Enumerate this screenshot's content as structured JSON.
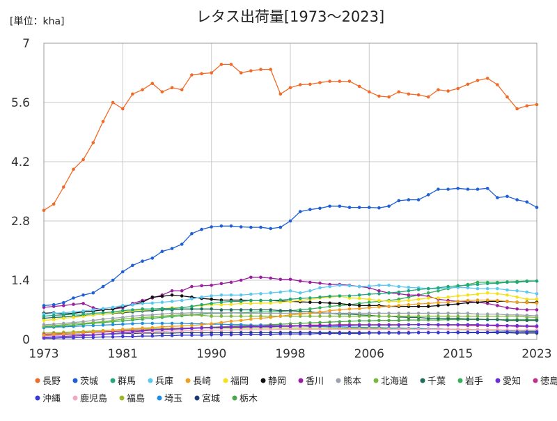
{
  "chart_data": {
    "type": "line",
    "title": "レタス出荷量[1973〜2023]",
    "unit_label": "[単位：kha]",
    "xlim": [
      1973,
      2023
    ],
    "ylim": [
      0,
      7
    ],
    "x_ticks": [
      1973,
      1981,
      1990,
      1998,
      2006,
      2015,
      2023
    ],
    "y_ticks": [
      0,
      1.4,
      2.8,
      4.2,
      5.6,
      7
    ],
    "y_tick_labels": [
      "0",
      "1.4",
      "2.8",
      "4.2",
      "5.6",
      "7"
    ],
    "grid": true,
    "legend_position": "bottom",
    "x": [
      1973,
      1974,
      1975,
      1976,
      1977,
      1978,
      1979,
      1980,
      1981,
      1982,
      1983,
      1984,
      1985,
      1986,
      1987,
      1988,
      1989,
      1990,
      1991,
      1992,
      1993,
      1994,
      1995,
      1996,
      1997,
      1998,
      1999,
      2000,
      2001,
      2002,
      2003,
      2004,
      2005,
      2006,
      2007,
      2008,
      2009,
      2010,
      2011,
      2012,
      2013,
      2014,
      2015,
      2016,
      2017,
      2018,
      2019,
      2020,
      2021,
      2022,
      2023
    ],
    "series": [
      {
        "name": "長野",
        "color": "#f06a28",
        "values": [
          3.05,
          3.2,
          3.6,
          4.02,
          4.25,
          4.65,
          5.15,
          5.6,
          5.45,
          5.8,
          5.9,
          6.05,
          5.85,
          5.95,
          5.9,
          6.25,
          6.28,
          6.3,
          6.5,
          6.5,
          6.3,
          6.35,
          6.38,
          6.38,
          5.8,
          5.95,
          6.02,
          6.03,
          6.07,
          6.1,
          6.1,
          6.1,
          5.98,
          5.85,
          5.75,
          5.73,
          5.85,
          5.8,
          5.78,
          5.73,
          5.9,
          5.87,
          5.93,
          6.03,
          6.12,
          6.17,
          6.02,
          5.73,
          5.45,
          5.52,
          5.55
        ]
      },
      {
        "name": "茨城",
        "color": "#1f5fd6",
        "values": [
          0.8,
          0.82,
          0.87,
          0.98,
          1.05,
          1.1,
          1.25,
          1.4,
          1.6,
          1.75,
          1.85,
          1.92,
          2.08,
          2.15,
          2.25,
          2.5,
          2.6,
          2.66,
          2.68,
          2.68,
          2.66,
          2.65,
          2.65,
          2.62,
          2.65,
          2.8,
          3.02,
          3.07,
          3.1,
          3.15,
          3.15,
          3.12,
          3.12,
          3.12,
          3.11,
          3.15,
          3.28,
          3.3,
          3.3,
          3.42,
          3.55,
          3.55,
          3.57,
          3.55,
          3.55,
          3.57,
          3.35,
          3.38,
          3.3,
          3.25,
          3.12
        ]
      },
      {
        "name": "群馬",
        "color": "#21a87a",
        "values": [
          0.55,
          0.57,
          0.58,
          0.6,
          0.6,
          0.62,
          0.63,
          0.65,
          0.68,
          0.7,
          0.72,
          0.72,
          0.73,
          0.73,
          0.75,
          0.78,
          0.82,
          0.85,
          0.88,
          0.9,
          0.9,
          0.92,
          0.92,
          0.92,
          0.93,
          0.95,
          0.97,
          0.98,
          1.0,
          1.02,
          1.03,
          1.03,
          1.05,
          1.07,
          1.08,
          1.1,
          1.12,
          1.15,
          1.18,
          1.2,
          1.22,
          1.25,
          1.27,
          1.28,
          1.3,
          1.32,
          1.33,
          1.35,
          1.35,
          1.37,
          1.38
        ]
      },
      {
        "name": "兵庫",
        "color": "#5ac8f0",
        "values": [
          0.6,
          0.62,
          0.63,
          0.65,
          0.67,
          0.7,
          0.73,
          0.76,
          0.8,
          0.82,
          0.85,
          0.86,
          0.88,
          0.9,
          0.92,
          0.96,
          1.0,
          1.03,
          1.05,
          1.05,
          1.05,
          1.07,
          1.08,
          1.1,
          1.12,
          1.15,
          1.1,
          1.15,
          1.22,
          1.25,
          1.28,
          1.27,
          1.25,
          1.26,
          1.28,
          1.28,
          1.25,
          1.23,
          1.22,
          1.2,
          1.2,
          1.22,
          1.23,
          1.22,
          1.2,
          1.2,
          1.2,
          1.17,
          1.15,
          1.12,
          1.08
        ]
      },
      {
        "name": "長崎",
        "color": "#f0a020",
        "values": [
          0.1,
          0.12,
          0.13,
          0.15,
          0.17,
          0.18,
          0.2,
          0.22,
          0.24,
          0.25,
          0.27,
          0.28,
          0.3,
          0.31,
          0.32,
          0.33,
          0.35,
          0.37,
          0.4,
          0.43,
          0.45,
          0.48,
          0.5,
          0.52,
          0.55,
          0.58,
          0.6,
          0.62,
          0.65,
          0.68,
          0.7,
          0.72,
          0.73,
          0.75,
          0.77,
          0.78,
          0.8,
          0.82,
          0.84,
          0.85,
          0.87,
          0.88,
          0.9,
          0.92,
          0.93,
          0.93,
          0.92,
          0.9,
          0.88,
          0.87,
          0.86
        ]
      },
      {
        "name": "福岡",
        "color": "#f5e21a",
        "values": [
          0.45,
          0.47,
          0.5,
          0.52,
          0.55,
          0.58,
          0.6,
          0.63,
          0.65,
          0.68,
          0.7,
          0.72,
          0.73,
          0.75,
          0.75,
          0.78,
          0.8,
          0.82,
          0.82,
          0.83,
          0.85,
          0.85,
          0.86,
          0.86,
          0.88,
          0.9,
          0.92,
          0.95,
          0.98,
          1.0,
          1.02,
          0.98,
          0.97,
          0.95,
          0.92,
          0.9,
          0.9,
          0.92,
          0.95,
          0.98,
          0.98,
          1.0,
          1.03,
          1.05,
          1.07,
          1.1,
          1.08,
          1.05,
          1.0,
          0.95,
          0.95
        ]
      },
      {
        "name": "静岡",
        "color": "#111111",
        "values": [
          0.62,
          0.63,
          0.6,
          0.62,
          0.65,
          0.67,
          0.7,
          0.72,
          0.78,
          0.82,
          0.88,
          1.0,
          1.02,
          1.05,
          1.03,
          1.0,
          0.97,
          0.95,
          0.93,
          0.93,
          0.93,
          0.92,
          0.92,
          0.92,
          0.91,
          0.9,
          0.89,
          0.88,
          0.87,
          0.86,
          0.85,
          0.82,
          0.8,
          0.8,
          0.8,
          0.78,
          0.78,
          0.78,
          0.78,
          0.78,
          0.8,
          0.82,
          0.84,
          0.87,
          0.88,
          0.9,
          0.9,
          0.9,
          0.88,
          0.88,
          0.88
        ]
      },
      {
        "name": "香川",
        "color": "#9c1fa0",
        "values": [
          0.76,
          0.78,
          0.8,
          0.83,
          0.85,
          0.75,
          0.7,
          0.72,
          0.75,
          0.85,
          0.92,
          0.98,
          1.05,
          1.15,
          1.15,
          1.25,
          1.27,
          1.28,
          1.32,
          1.35,
          1.4,
          1.47,
          1.47,
          1.45,
          1.42,
          1.42,
          1.38,
          1.35,
          1.33,
          1.3,
          1.3,
          1.28,
          1.25,
          1.22,
          1.15,
          1.1,
          1.08,
          1.05,
          1.05,
          1.02,
          0.95,
          0.92,
          0.9,
          0.9,
          0.88,
          0.85,
          0.8,
          0.75,
          0.72,
          0.7,
          0.7
        ]
      },
      {
        "name": "熊本",
        "color": "#9aa3ad",
        "values": [
          0.35,
          0.36,
          0.38,
          0.4,
          0.42,
          0.45,
          0.48,
          0.5,
          0.52,
          0.55,
          0.57,
          0.58,
          0.6,
          0.62,
          0.62,
          0.63,
          0.63,
          0.63,
          0.63,
          0.63,
          0.62,
          0.62,
          0.62,
          0.62,
          0.62,
          0.62,
          0.62,
          0.62,
          0.62,
          0.62,
          0.62,
          0.62,
          0.62,
          0.62,
          0.62,
          0.62,
          0.62,
          0.62,
          0.62,
          0.62,
          0.62,
          0.62,
          0.62,
          0.62,
          0.6,
          0.6,
          0.6,
          0.58,
          0.58,
          0.57,
          0.56
        ]
      },
      {
        "name": "北海道",
        "color": "#7ab83a",
        "values": [
          0.32,
          0.33,
          0.35,
          0.37,
          0.38,
          0.4,
          0.42,
          0.45,
          0.48,
          0.5,
          0.52,
          0.53,
          0.55,
          0.57,
          0.58,
          0.58,
          0.57,
          0.55,
          0.55,
          0.55,
          0.55,
          0.55,
          0.55,
          0.55,
          0.55,
          0.55,
          0.55,
          0.55,
          0.55,
          0.55,
          0.55,
          0.55,
          0.55,
          0.55,
          0.55,
          0.55,
          0.55,
          0.55,
          0.55,
          0.55,
          0.55,
          0.55,
          0.55,
          0.55,
          0.55,
          0.55,
          0.55,
          0.55,
          0.55,
          0.53,
          0.52
        ]
      },
      {
        "name": "千葉",
        "color": "#1d6b5c",
        "values": [
          0.5,
          0.52,
          0.53,
          0.55,
          0.57,
          0.58,
          0.6,
          0.62,
          0.63,
          0.65,
          0.67,
          0.68,
          0.7,
          0.7,
          0.72,
          0.72,
          0.72,
          0.72,
          0.7,
          0.7,
          0.7,
          0.7,
          0.7,
          0.7,
          0.68,
          0.68,
          0.66,
          0.65,
          0.63,
          0.62,
          0.6,
          0.6,
          0.58,
          0.57,
          0.55,
          0.55,
          0.53,
          0.52,
          0.52,
          0.5,
          0.5,
          0.5,
          0.5,
          0.48,
          0.48,
          0.47,
          0.47,
          0.45,
          0.45,
          0.45,
          0.45
        ]
      },
      {
        "name": "岩手",
        "color": "#36b05a",
        "values": [
          0.3,
          0.31,
          0.32,
          0.34,
          0.36,
          0.38,
          0.4,
          0.42,
          0.44,
          0.46,
          0.48,
          0.5,
          0.52,
          0.54,
          0.56,
          0.58,
          0.6,
          0.62,
          0.62,
          0.63,
          0.63,
          0.64,
          0.65,
          0.65,
          0.66,
          0.68,
          0.7,
          0.72,
          0.75,
          0.78,
          0.8,
          0.82,
          0.85,
          0.88,
          0.9,
          0.92,
          0.95,
          1.0,
          1.05,
          1.1,
          1.15,
          1.2,
          1.25,
          1.3,
          1.35,
          1.35,
          1.35,
          1.36,
          1.37,
          1.38,
          1.38
        ]
      },
      {
        "name": "愛知",
        "color": "#6b2fd6",
        "values": [
          0.05,
          0.06,
          0.07,
          0.08,
          0.09,
          0.1,
          0.12,
          0.14,
          0.16,
          0.18,
          0.2,
          0.22,
          0.23,
          0.24,
          0.25,
          0.26,
          0.27,
          0.28,
          0.28,
          0.29,
          0.29,
          0.3,
          0.3,
          0.3,
          0.31,
          0.31,
          0.32,
          0.32,
          0.32,
          0.33,
          0.33,
          0.33,
          0.34,
          0.34,
          0.34,
          0.34,
          0.34,
          0.35,
          0.35,
          0.35,
          0.35,
          0.35,
          0.35,
          0.35,
          0.35,
          0.34,
          0.34,
          0.33,
          0.33,
          0.32,
          0.32
        ]
      },
      {
        "name": "徳島",
        "color": "#c22f8a",
        "values": [
          0.12,
          0.13,
          0.14,
          0.15,
          0.16,
          0.17,
          0.18,
          0.19,
          0.2,
          0.21,
          0.22,
          0.23,
          0.24,
          0.25,
          0.26,
          0.27,
          0.28,
          0.28,
          0.29,
          0.3,
          0.3,
          0.31,
          0.31,
          0.32,
          0.32,
          0.33,
          0.33,
          0.34,
          0.34,
          0.34,
          0.35,
          0.35,
          0.35,
          0.35,
          0.35,
          0.35,
          0.35,
          0.35,
          0.35,
          0.35,
          0.34,
          0.34,
          0.34,
          0.33,
          0.33,
          0.33,
          0.32,
          0.32,
          0.31,
          0.31,
          0.3
        ]
      },
      {
        "name": "沖縄",
        "color": "#3a3ad6",
        "values": [
          0.03,
          0.03,
          0.04,
          0.04,
          0.05,
          0.05,
          0.06,
          0.06,
          0.07,
          0.07,
          0.08,
          0.08,
          0.09,
          0.09,
          0.1,
          0.1,
          0.1,
          0.11,
          0.11,
          0.11,
          0.12,
          0.12,
          0.12,
          0.12,
          0.13,
          0.13,
          0.13,
          0.13,
          0.14,
          0.14,
          0.14,
          0.14,
          0.14,
          0.15,
          0.15,
          0.15,
          0.15,
          0.15,
          0.16,
          0.16,
          0.16,
          0.16,
          0.17,
          0.17,
          0.17,
          0.17,
          0.18,
          0.18,
          0.18,
          0.18,
          0.18
        ]
      },
      {
        "name": "鹿児島",
        "color": "#f2a8c0",
        "values": [
          0.08,
          0.09,
          0.1,
          0.1,
          0.11,
          0.12,
          0.13,
          0.14,
          0.15,
          0.16,
          0.17,
          0.18,
          0.19,
          0.2,
          0.2,
          0.21,
          0.21,
          0.22,
          0.22,
          0.22,
          0.23,
          0.23,
          0.23,
          0.23,
          0.24,
          0.24,
          0.24,
          0.24,
          0.24,
          0.24,
          0.24,
          0.24,
          0.24,
          0.24,
          0.24,
          0.24,
          0.24,
          0.24,
          0.24,
          0.24,
          0.24,
          0.24,
          0.24,
          0.24,
          0.23,
          0.23,
          0.23,
          0.22,
          0.22,
          0.22,
          0.22
        ]
      },
      {
        "name": "福島",
        "color": "#9ab82a",
        "values": [
          0.15,
          0.16,
          0.17,
          0.18,
          0.19,
          0.2,
          0.21,
          0.22,
          0.23,
          0.24,
          0.25,
          0.25,
          0.26,
          0.26,
          0.27,
          0.27,
          0.27,
          0.27,
          0.27,
          0.27,
          0.27,
          0.27,
          0.27,
          0.27,
          0.27,
          0.27,
          0.27,
          0.27,
          0.27,
          0.27,
          0.26,
          0.26,
          0.26,
          0.26,
          0.26,
          0.25,
          0.25,
          0.25,
          0.24,
          0.24,
          0.24,
          0.24,
          0.23,
          0.23,
          0.23,
          0.22,
          0.22,
          0.22,
          0.21,
          0.21,
          0.21
        ]
      },
      {
        "name": "埼玉",
        "color": "#1f8ee0",
        "values": [
          0.28,
          0.29,
          0.3,
          0.31,
          0.32,
          0.33,
          0.34,
          0.35,
          0.36,
          0.37,
          0.38,
          0.38,
          0.38,
          0.38,
          0.38,
          0.37,
          0.37,
          0.36,
          0.36,
          0.35,
          0.35,
          0.34,
          0.34,
          0.33,
          0.33,
          0.32,
          0.32,
          0.31,
          0.31,
          0.3,
          0.3,
          0.29,
          0.29,
          0.28,
          0.28,
          0.27,
          0.27,
          0.26,
          0.26,
          0.25,
          0.25,
          0.24,
          0.24,
          0.23,
          0.23,
          0.22,
          0.22,
          0.21,
          0.21,
          0.2,
          0.2
        ]
      },
      {
        "name": "宮城",
        "color": "#203a70",
        "values": [
          0.1,
          0.1,
          0.11,
          0.11,
          0.12,
          0.12,
          0.13,
          0.13,
          0.14,
          0.14,
          0.15,
          0.15,
          0.15,
          0.15,
          0.16,
          0.16,
          0.16,
          0.16,
          0.16,
          0.16,
          0.16,
          0.16,
          0.16,
          0.16,
          0.16,
          0.16,
          0.16,
          0.16,
          0.16,
          0.16,
          0.16,
          0.16,
          0.16,
          0.16,
          0.16,
          0.16,
          0.16,
          0.16,
          0.16,
          0.16,
          0.16,
          0.16,
          0.16,
          0.16,
          0.16,
          0.16,
          0.16,
          0.16,
          0.15,
          0.15,
          0.15
        ]
      },
      {
        "name": "栃木",
        "color": "#4aa84a",
        "values": [
          0.12,
          0.13,
          0.14,
          0.15,
          0.16,
          0.17,
          0.18,
          0.19,
          0.2,
          0.21,
          0.22,
          0.23,
          0.24,
          0.25,
          0.26,
          0.27,
          0.28,
          0.29,
          0.3,
          0.31,
          0.32,
          0.33,
          0.34,
          0.35,
          0.36,
          0.37,
          0.38,
          0.39,
          0.4,
          0.41,
          0.42,
          0.43,
          0.44,
          0.44,
          0.45,
          0.45,
          0.45,
          0.46,
          0.46,
          0.46,
          0.46,
          0.47,
          0.47,
          0.47,
          0.47,
          0.47,
          0.47,
          0.47,
          0.47,
          0.47,
          0.47
        ]
      }
    ]
  }
}
